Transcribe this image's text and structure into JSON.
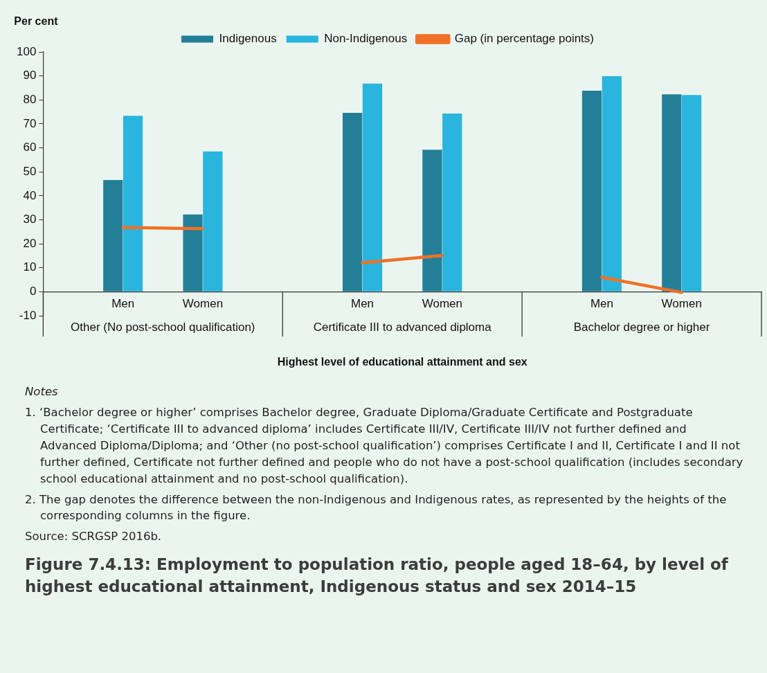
{
  "chart_data": {
    "type": "bar",
    "title": "Figure 7.4.13: Employment to population ratio, people aged 18–64, by level of highest educational attainment, Indigenous status and sex 2014–15",
    "ylabel": "Per cent",
    "xlabel": "Highest level of educational attainment and sex",
    "categories": [
      null,
      "Men",
      "Women",
      null,
      "Men",
      "Women",
      null,
      "Men",
      "Women",
      null
    ],
    "series": [
      {
        "name": "Indigenous",
        "color": "#237f98",
        "values": [
          null,
          46.6,
          32.2,
          null,
          74.6,
          59.2,
          null,
          83.8,
          82.3,
          null
        ]
      },
      {
        "name": "Non-Indigenous",
        "color": "#29b5dd",
        "values": [
          null,
          73.4,
          58.5,
          null,
          86.8,
          74.3,
          null,
          89.9,
          82.0,
          null
        ]
      },
      {
        "name": "Gap (in percentage points)",
        "type": "line",
        "color": "#f07127",
        "values": [
          null,
          26.8,
          26.3,
          null,
          12.1,
          15.1,
          null,
          6.0,
          -0.3,
          null
        ]
      }
    ],
    "ylim": [
      -10,
      100
    ],
    "yticks": [
      -10,
      0,
      10,
      20,
      30,
      40,
      50,
      60,
      70,
      80,
      90,
      100
    ],
    "legend": "top",
    "annotations": [
      "Other (No post-school qualification)",
      "Certificate III to advanced diploma",
      "Bachelor degree or higher",
      "Notes",
      "1. ‘Bachelor degree or higher’ comprises Bachelor degree, Graduate Diploma/Graduate Certificate and Postgraduate Certificate; ‘Certificate III to advanced diploma’ includes Certificate III/IV, Certificate III/IV not further defined and Advanced Diploma/Diploma; and ‘Other (no post-school qualification’) comprises Certificate I and II, Certificate I and II not further defined, Certificate not further defined and people who do not have a post-school qualification (includes secondary school educational attainment and no post-school qualification).",
      "2. The gap denotes the difference between the non-Indigenous and Indigenous rates, as represented by the heights of the corresponding columns in the figure.",
      "Source: SCRGSP 2016b."
    ]
  }
}
